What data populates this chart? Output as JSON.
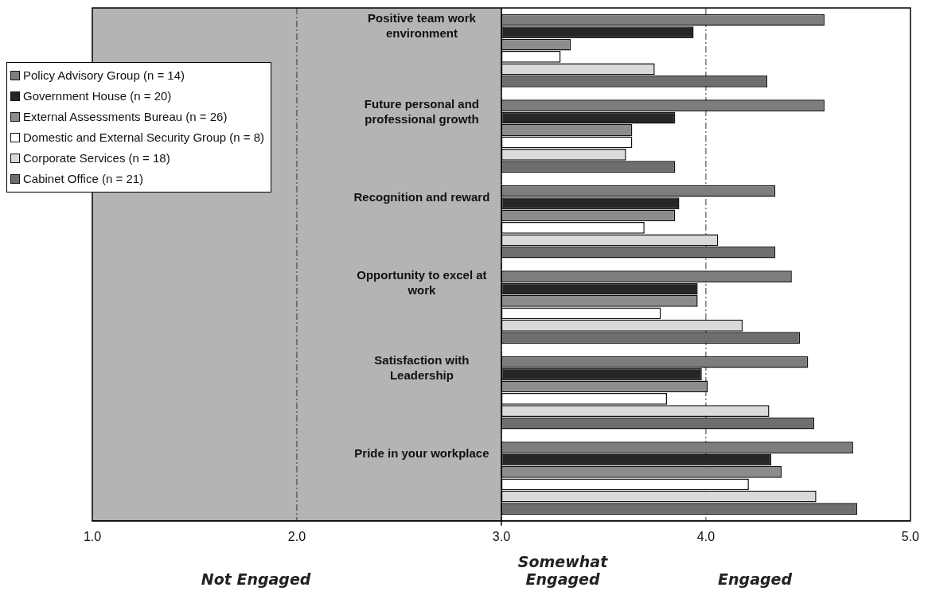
{
  "chart_data": {
    "type": "bar",
    "orientation": "horizontal",
    "categories": [
      "Positive team work environment",
      "Future personal and professional growth",
      "Recognition and reward",
      "Opportunity to excel at work",
      "Satisfaction with Leadership",
      "Pride in your workplace"
    ],
    "series": [
      {
        "name": "Policy Advisory Group (n = 14)",
        "color": "#7d7d7d",
        "values": [
          1.58,
          1.58,
          1.34,
          1.42,
          1.5,
          1.72
        ],
        "base": [
          3,
          3,
          3,
          3,
          3,
          3
        ]
      },
      {
        "name": "Government House (n = 20)",
        "color": "#262626",
        "values": [
          0.94,
          0.85,
          0.87,
          0.96,
          0.98,
          1.32
        ],
        "base": [
          3,
          3,
          3,
          3,
          3,
          3
        ]
      },
      {
        "name": "External Assessments Bureau (n = 26)",
        "color": "#8c8c8c",
        "values": [
          0.34,
          0.64,
          0.85,
          0.96,
          1.01,
          1.37
        ],
        "base": [
          3,
          3,
          3,
          3,
          3,
          3
        ]
      },
      {
        "name": "Domestic and External Security Group (n = 8)",
        "color": "#ffffff",
        "values": [
          0.29,
          0.64,
          0.7,
          0.78,
          0.81,
          1.21
        ],
        "base": [
          3,
          3,
          3,
          3,
          3,
          3
        ]
      },
      {
        "name": "Corporate Services (n = 18)",
        "color": "#dadada",
        "values": [
          0.75,
          0.61,
          1.06,
          1.18,
          1.31,
          1.54
        ],
        "base": [
          3,
          3,
          3,
          3,
          3,
          3
        ]
      },
      {
        "name": "Cabinet Office (n = 21)",
        "color": "#6e6e6e",
        "values": [
          1.3,
          0.85,
          1.34,
          1.46,
          1.53,
          1.74
        ],
        "base": [
          3,
          3,
          3,
          3,
          3,
          3
        ]
      }
    ],
    "xlim": [
      1,
      5
    ],
    "xticks": [
      {
        "value": 1,
        "label": "1.0"
      },
      {
        "value": 2,
        "label": "2.0"
      },
      {
        "value": 3,
        "label": "3.0"
      },
      {
        "value": 4,
        "label": "4.0"
      },
      {
        "value": 5,
        "label": "5.0"
      }
    ],
    "grid": "x",
    "bands": [
      {
        "axis": "x",
        "from": 1,
        "to": 3,
        "color": "#b4b4b4"
      }
    ],
    "legend": "top left",
    "annotations": [
      "Not Engaged",
      "Somewhat\nEngaged",
      "Engaged"
    ]
  }
}
